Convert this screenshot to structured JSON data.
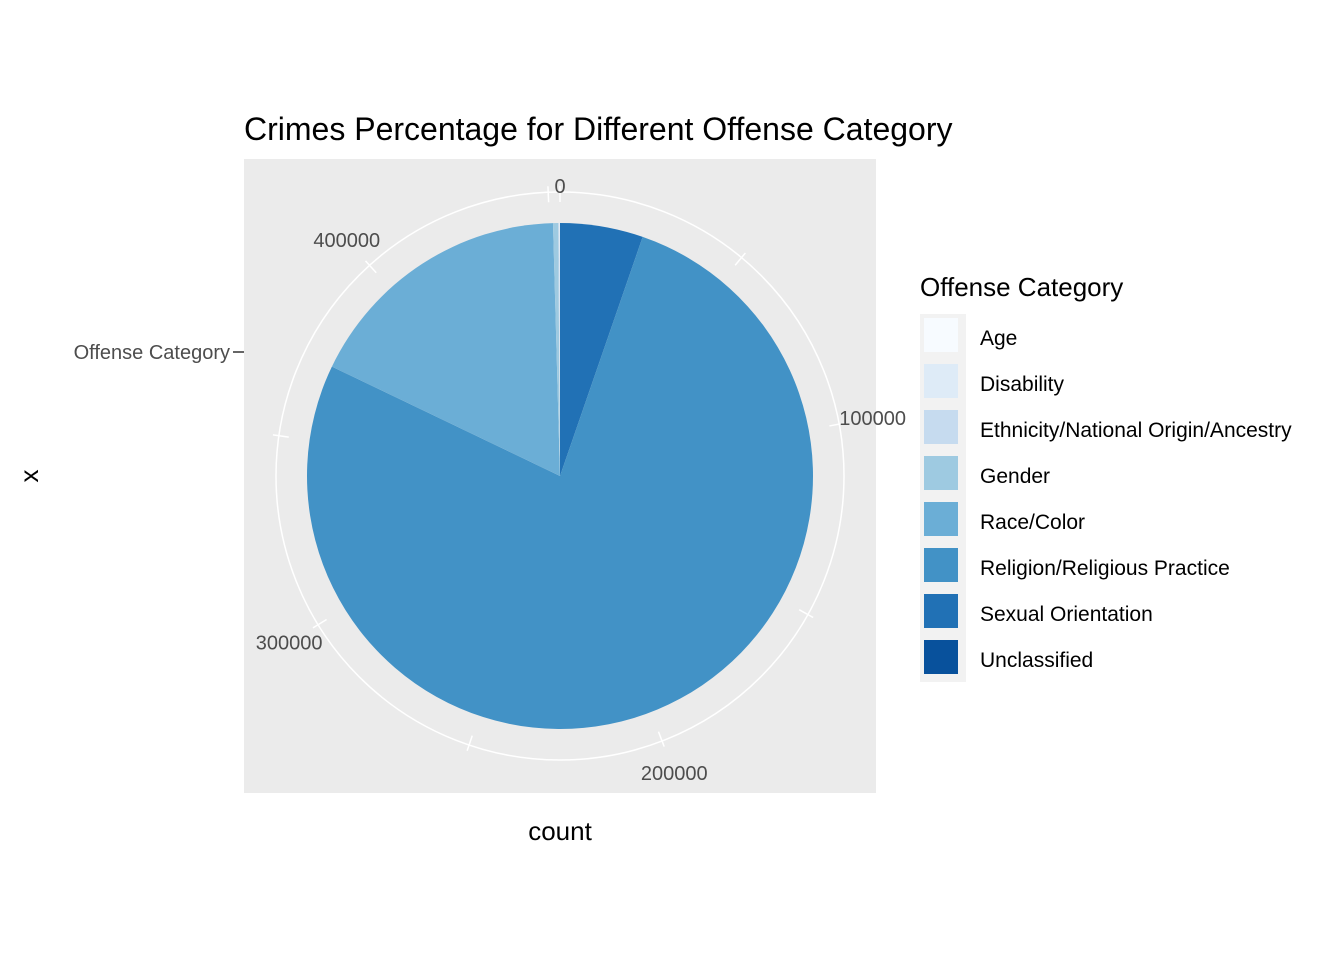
{
  "chart_data": {
    "type": "pie",
    "title": "Crimes Percentage for Different Offense Category",
    "xlabel": "count",
    "ylabel": "x",
    "y_tick_label": "Offense Category",
    "radial_ticks": [
      0,
      100000,
      200000,
      300000,
      400000
    ],
    "radial_tick_labels": [
      "0",
      "100000",
      "200000",
      "300000",
      "400000"
    ],
    "total": 453000,
    "legend": {
      "title": "Offense Category",
      "placement": "right"
    },
    "slices": [
      {
        "name": "Sexual Orientation",
        "value": 24000,
        "color": "#2171b5"
      },
      {
        "name": "Religion/Religious Practice",
        "value": 348000,
        "color": "#4292c6"
      },
      {
        "name": "Race/Color",
        "value": 79000,
        "color": "#6baed6"
      },
      {
        "name": "Gender",
        "value": 1500,
        "color": "#9ecae1"
      },
      {
        "name": "Ethnicity/National Origin/Ancestry",
        "value": 300,
        "color": "#c6dbef"
      },
      {
        "name": "Disability",
        "value": 150,
        "color": "#deebf7"
      },
      {
        "name": "Age",
        "value": 50,
        "color": "#f7fbff"
      }
    ],
    "legend_entries": [
      {
        "name": "Age",
        "color": "#f7fbff"
      },
      {
        "name": "Disability",
        "color": "#deebf7"
      },
      {
        "name": "Ethnicity/National Origin/Ancestry",
        "color": "#c6dbef"
      },
      {
        "name": "Gender",
        "color": "#9ecae1"
      },
      {
        "name": "Race/Color",
        "color": "#6baed6"
      },
      {
        "name": "Religion/Religious Practice",
        "color": "#4292c6"
      },
      {
        "name": "Sexual Orientation",
        "color": "#2171b5"
      },
      {
        "name": "Unclassified",
        "color": "#08519c"
      }
    ],
    "grid": true,
    "panel_color": "#ebebeb",
    "grid_color": "#ffffff"
  }
}
